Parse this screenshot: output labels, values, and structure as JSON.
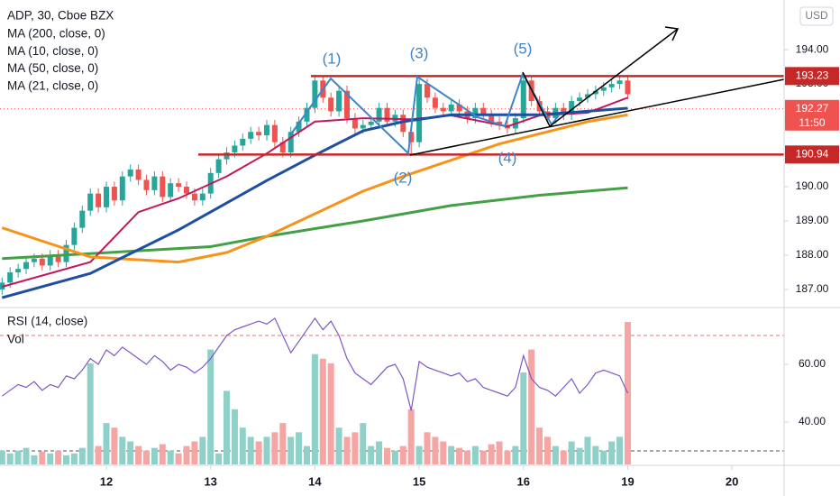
{
  "chart_data": [
    {
      "type": "candlestick",
      "title": "ADP, 30, Cboe BZX",
      "currency": "USD",
      "open": [
        187.0,
        187.2,
        187.5,
        187.6,
        187.8,
        187.9,
        187.7,
        188.0,
        187.8,
        188.3,
        188.8,
        189.3,
        189.8,
        189.4,
        190.0,
        189.6,
        190.3,
        190.5,
        190.2,
        189.9,
        190.3,
        189.7,
        190.1,
        190.0,
        189.8,
        189.6,
        189.8,
        190.4,
        190.8,
        191.0,
        191.2,
        191.4,
        191.6,
        191.5,
        191.8,
        191.3,
        191.0,
        191.6,
        191.9,
        192.3,
        193.1,
        192.6,
        192.2,
        192.8,
        192.0,
        191.7,
        191.8,
        191.9,
        192.3,
        191.9,
        192.1,
        191.6,
        191.3,
        193.0,
        192.6,
        192.3,
        192.2,
        192.4,
        192.2,
        192.0,
        192.3,
        192.1,
        191.9,
        191.8,
        191.7,
        192.0,
        193.1,
        192.5,
        192.2,
        192.0,
        192.3,
        192.1,
        192.5,
        192.6,
        192.7,
        192.8,
        192.9,
        193.0,
        193.1
      ],
      "high": [
        187.35,
        187.65,
        187.75,
        187.95,
        188.05,
        188.05,
        188.15,
        188.15,
        188.45,
        188.95,
        189.45,
        189.95,
        189.95,
        190.15,
        190.15,
        190.45,
        190.65,
        190.65,
        190.35,
        190.45,
        190.45,
        190.25,
        190.25,
        190.15,
        189.95,
        189.95,
        190.55,
        190.95,
        191.15,
        191.35,
        191.55,
        191.75,
        191.75,
        191.95,
        191.95,
        191.45,
        191.75,
        192.05,
        192.45,
        193.23,
        193.2,
        192.75,
        192.95,
        192.95,
        192.15,
        191.95,
        192.05,
        192.45,
        192.45,
        192.25,
        192.25,
        191.75,
        193.23,
        193.15,
        192.75,
        192.45,
        192.55,
        192.55,
        192.35,
        192.45,
        192.45,
        192.25,
        192.05,
        191.95,
        192.15,
        193.23,
        193.2,
        192.65,
        192.35,
        192.45,
        192.45,
        192.65,
        192.75,
        192.85,
        192.95,
        193.05,
        193.15,
        193.25,
        193.25
      ],
      "low": [
        186.85,
        187.05,
        187.35,
        187.45,
        187.65,
        187.55,
        187.55,
        187.65,
        187.65,
        188.15,
        188.65,
        189.15,
        189.25,
        189.25,
        189.45,
        189.45,
        190.15,
        190.05,
        189.75,
        189.75,
        189.55,
        189.55,
        189.85,
        189.65,
        189.45,
        189.45,
        189.65,
        190.25,
        190.65,
        190.85,
        191.05,
        191.25,
        191.35,
        191.35,
        191.15,
        190.85,
        190.85,
        191.45,
        191.75,
        192.15,
        192.45,
        192.05,
        192.05,
        191.85,
        191.55,
        191.55,
        191.65,
        191.75,
        191.75,
        191.75,
        191.45,
        190.9,
        191.15,
        192.45,
        192.15,
        192.05,
        192.05,
        192.05,
        191.85,
        191.85,
        191.95,
        191.75,
        191.65,
        191.55,
        191.55,
        191.85,
        192.35,
        192.05,
        191.85,
        191.85,
        191.95,
        191.95,
        192.35,
        192.45,
        192.55,
        192.65,
        192.75,
        192.85,
        192.55
      ],
      "close": [
        187.2,
        187.5,
        187.6,
        187.8,
        187.9,
        187.7,
        188.0,
        187.8,
        188.3,
        188.8,
        189.3,
        189.8,
        189.4,
        190.0,
        189.6,
        190.3,
        190.5,
        190.2,
        189.9,
        190.3,
        189.7,
        190.1,
        190.0,
        189.8,
        189.6,
        189.8,
        190.4,
        190.8,
        191.0,
        191.2,
        191.4,
        191.6,
        191.5,
        191.8,
        191.3,
        191.0,
        191.6,
        191.9,
        192.3,
        193.1,
        192.6,
        192.2,
        192.8,
        192.0,
        191.7,
        191.8,
        191.9,
        192.3,
        191.9,
        192.1,
        191.6,
        191.3,
        193.0,
        192.6,
        192.3,
        192.2,
        192.4,
        192.2,
        192.0,
        192.3,
        192.1,
        191.9,
        191.8,
        191.7,
        192.0,
        193.1,
        192.5,
        192.2,
        192.0,
        192.3,
        192.1,
        192.5,
        192.6,
        192.7,
        192.8,
        192.9,
        193.0,
        193.1,
        192.7
      ],
      "up_color": "#26a69a",
      "down_color": "#ef5350",
      "series": [
        {
          "name": "MA (200, close, 0)",
          "color": "#43a047",
          "x": [
            0,
            26,
            33,
            45,
            56,
            67,
            78
          ],
          "values": [
            187.9,
            188.25,
            188.55,
            189.0,
            189.45,
            189.75,
            189.97
          ]
        },
        {
          "name": "MA (10, close, 0)",
          "color": "#c2185b",
          "x": [
            0,
            11,
            17,
            22,
            28,
            33,
            39,
            45,
            51,
            56,
            63,
            67,
            73,
            78
          ],
          "values": [
            187.08,
            187.8,
            189.26,
            189.66,
            190.3,
            190.97,
            191.9,
            192.0,
            191.97,
            192.08,
            191.76,
            192.08,
            192.16,
            192.6
          ]
        },
        {
          "name": "MA (50, close, 0)",
          "color": "#f7931a",
          "x": [
            0,
            11,
            22,
            28,
            33,
            45,
            50,
            62,
            73,
            78
          ],
          "values": [
            188.8,
            187.95,
            187.8,
            188.08,
            188.55,
            189.87,
            190.3,
            191.25,
            191.9,
            192.1
          ]
        },
        {
          "name": "MA (21, close, 0)",
          "color": "#1e4fa0",
          "x": [
            0,
            11,
            22,
            33,
            39,
            45,
            50,
            56,
            67,
            78
          ],
          "values": [
            186.76,
            187.47,
            188.74,
            190.18,
            190.92,
            191.63,
            191.9,
            192.1,
            192.1,
            192.29
          ]
        }
      ],
      "levels": [
        {
          "value": 193.23,
          "color": "#c62828"
        },
        {
          "value": 190.94,
          "color": "#c62828"
        }
      ],
      "last_price": 192.27,
      "countdown": "11:50",
      "last_price_color": "#ef5350",
      "annotations": [
        "(1)",
        "(2)",
        "(3)",
        "(4)",
        "(5)"
      ],
      "xlim": [
        -0.26,
        97.5
      ],
      "ylim": [
        186.5,
        195.45
      ],
      "yticks": [
        {
          "value": 187,
          "label": "187.00"
        },
        {
          "value": 188,
          "label": "188.00"
        },
        {
          "value": 189,
          "label": "189.00"
        },
        {
          "value": 190,
          "label": "190.00"
        },
        {
          "value": 191,
          "label": "191.00"
        },
        {
          "value": 192,
          "label": "192.00"
        },
        {
          "value": 193,
          "label": "193.00"
        },
        {
          "value": 194,
          "label": "194.00"
        }
      ]
    },
    {
      "type": "rsi",
      "title": "RSI (14, close)",
      "color": "#7e57c2",
      "values": [
        49,
        51,
        53,
        52,
        54,
        51,
        53,
        52,
        56,
        55,
        58,
        62,
        60,
        65,
        63,
        66,
        64,
        62,
        60,
        63,
        61,
        58,
        60,
        59,
        57,
        59,
        62,
        66,
        70,
        72,
        73,
        74,
        75,
        74,
        76,
        70,
        64,
        68,
        72,
        76,
        72,
        75,
        70,
        62,
        57,
        55,
        53,
        56,
        59,
        60,
        55,
        44,
        61,
        59,
        58,
        57,
        56,
        57,
        54,
        55,
        52,
        51,
        50,
        49,
        52,
        63,
        55,
        52,
        51,
        49,
        52,
        55,
        50,
        53,
        57,
        58,
        57,
        56,
        50
      ],
      "levels": [
        {
          "value": 70,
          "color": "#e57373"
        },
        {
          "value": 30,
          "color": "#555555"
        }
      ],
      "volume": {
        "name": "Vol",
        "up_color": "#8fd0c8",
        "down_color": "#f5a6a4",
        "values": [
          15,
          12,
          15,
          18,
          10,
          14,
          12,
          15,
          10,
          12,
          18,
          110,
          20,
          45,
          40,
          30,
          25,
          20,
          15,
          18,
          22,
          15,
          12,
          20,
          25,
          30,
          125,
          12,
          80,
          60,
          40,
          30,
          25,
          30,
          35,
          45,
          30,
          35,
          20,
          120,
          115,
          110,
          40,
          30,
          35,
          45,
          20,
          25,
          18,
          15,
          20,
          60,
          20,
          35,
          30,
          25,
          20,
          18,
          15,
          20,
          15,
          22,
          25,
          15,
          20,
          100,
          125,
          40,
          30,
          20,
          15,
          25,
          18,
          30,
          20,
          15,
          25,
          30,
          155
        ]
      },
      "xlim": [
        -0.26,
        97.5
      ],
      "ylim": [
        25.3,
        79.4
      ],
      "yticks": [
        {
          "value": 40,
          "label": "40.00"
        },
        {
          "value": 60,
          "label": "60.00"
        }
      ],
      "xticks": [
        {
          "value": 13,
          "label": "12"
        },
        {
          "value": 26,
          "label": "13"
        },
        {
          "value": 39,
          "label": "14"
        },
        {
          "value": 52,
          "label": "15"
        },
        {
          "value": 65,
          "label": "16"
        },
        {
          "value": 78,
          "label": "19"
        },
        {
          "value": 91,
          "label": "20"
        }
      ]
    }
  ]
}
